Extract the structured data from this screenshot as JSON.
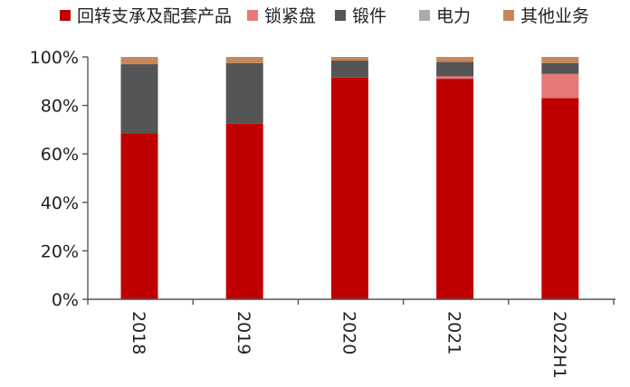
{
  "chart_data": {
    "type": "bar",
    "stacked": true,
    "percent": true,
    "categories": [
      "2018",
      "2019",
      "2020",
      "2021",
      "2022H1"
    ],
    "ylim": [
      0,
      100
    ],
    "yticks": [
      0,
      20,
      40,
      60,
      80,
      100
    ],
    "ytick_labels": [
      "0%",
      "20%",
      "40%",
      "60%",
      "80%",
      "100%"
    ],
    "legend_position": "top",
    "grid": false,
    "series": [
      {
        "name": "回转支承及配套产品",
        "color": "#C00000",
        "values": [
          68.5,
          72.5,
          91.5,
          91,
          83
        ]
      },
      {
        "name": "锁紧盘",
        "color": "#E87878",
        "values": [
          0,
          0,
          0,
          1,
          10
        ]
      },
      {
        "name": "锻件",
        "color": "#555555",
        "values": [
          28.5,
          25,
          7,
          6,
          4.5
        ]
      },
      {
        "name": "电力",
        "color": "#AAAAAA",
        "values": [
          0,
          0,
          0,
          0,
          0
        ]
      },
      {
        "name": "其他业务",
        "color": "#C8875A",
        "values": [
          3,
          2.5,
          1.5,
          2,
          2.5
        ]
      }
    ]
  }
}
